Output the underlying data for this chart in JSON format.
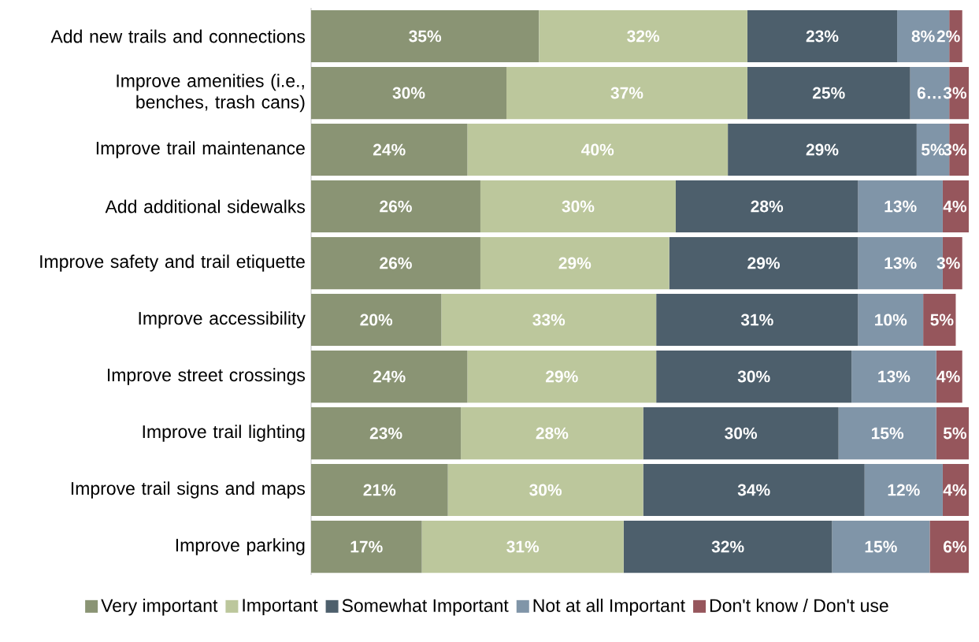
{
  "chart_data": {
    "type": "bar",
    "orientation": "horizontal",
    "stacked": true,
    "legend": "bottom",
    "categories": [
      "Add new trails and connections",
      "Improve amenities (i.e., benches, trash cans)",
      "Improve trail maintenance",
      "Add additional sidewalks",
      "Improve safety and trail etiquette",
      "Improve accessibility",
      "Improve street crossings",
      "Improve trail lighting",
      "Improve trail signs and maps",
      "Improve parking"
    ],
    "series": [
      {
        "name": "Very important",
        "color": "#8a9474",
        "values": [
          35,
          30,
          24,
          26,
          26,
          20,
          24,
          23,
          21,
          17
        ],
        "value_labels": [
          "35%",
          "30%",
          "24%",
          "26%",
          "26%",
          "20%",
          "24%",
          "23%",
          "21%",
          "17%"
        ]
      },
      {
        "name": "Important",
        "color": "#bcc79c",
        "values": [
          32,
          37,
          40,
          30,
          29,
          33,
          29,
          28,
          30,
          31
        ],
        "value_labels": [
          "32%",
          "37%",
          "40%",
          "30%",
          "29%",
          "33%",
          "29%",
          "28%",
          "30%",
          "31%"
        ]
      },
      {
        "name": "Somewhat Important",
        "color": "#4d5f6c",
        "values": [
          23,
          25,
          29,
          28,
          29,
          31,
          30,
          30,
          34,
          32
        ],
        "value_labels": [
          "23%",
          "25%",
          "29%",
          "28%",
          "29%",
          "31%",
          "30%",
          "30%",
          "34%",
          "32%"
        ]
      },
      {
        "name": "Not at all Important",
        "color": "#8095a8",
        "values": [
          8,
          6,
          5,
          13,
          13,
          10,
          13,
          15,
          12,
          15
        ],
        "value_labels": [
          "8%",
          "6…",
          "5%",
          "13%",
          "13%",
          "10%",
          "13%",
          "15%",
          "12%",
          "15%"
        ]
      },
      {
        "name": "Don't know / Don't use",
        "color": "#96565c",
        "values": [
          2,
          3,
          3,
          4,
          3,
          5,
          4,
          5,
          4,
          6
        ],
        "value_labels": [
          "2%",
          "3%",
          "3%",
          "4%",
          "3%",
          "5%",
          "4%",
          "5%",
          "4%",
          "6%"
        ]
      }
    ]
  }
}
